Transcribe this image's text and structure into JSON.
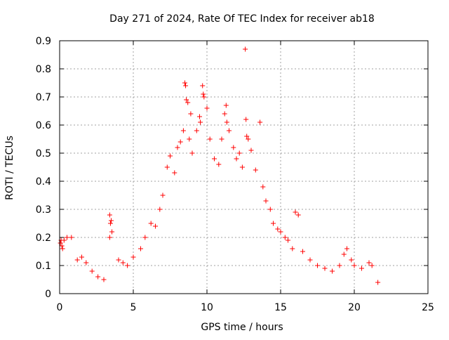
{
  "chart_data": {
    "type": "scatter",
    "title": "Day 271 of 2024, Rate Of TEC Index for receiver ab18",
    "xlabel": "GPS time / hours",
    "ylabel": "ROTI / TECUs",
    "xlim": [
      0,
      25
    ],
    "ylim": [
      0,
      0.9
    ],
    "x_ticks": [
      "0",
      "5",
      "10",
      "15",
      "20",
      "25"
    ],
    "y_ticks": [
      "0",
      "0.1",
      "0.2",
      "0.3",
      "0.4",
      "0.5",
      "0.6",
      "0.7",
      "0.8",
      "0.9"
    ],
    "grid": true,
    "marker": "+",
    "point_color": "#ff0000",
    "series": [
      {
        "points": [
          [
            0.05,
            0.18
          ],
          [
            0.1,
            0.19
          ],
          [
            0.15,
            0.17
          ],
          [
            0.2,
            0.16
          ],
          [
            0.3,
            0.19
          ],
          [
            0.5,
            0.2
          ],
          [
            0.8,
            0.2
          ],
          [
            1.2,
            0.12
          ],
          [
            1.5,
            0.13
          ],
          [
            1.8,
            0.11
          ],
          [
            2.2,
            0.08
          ],
          [
            2.6,
            0.06
          ],
          [
            3.0,
            0.05
          ],
          [
            3.4,
            0.28
          ],
          [
            3.5,
            0.26
          ],
          [
            3.45,
            0.25
          ],
          [
            3.55,
            0.22
          ],
          [
            3.4,
            0.2
          ],
          [
            4.0,
            0.12
          ],
          [
            4.3,
            0.11
          ],
          [
            4.6,
            0.1
          ],
          [
            5.0,
            0.13
          ],
          [
            5.5,
            0.16
          ],
          [
            5.8,
            0.2
          ],
          [
            6.2,
            0.25
          ],
          [
            6.5,
            0.24
          ],
          [
            6.8,
            0.3
          ],
          [
            7.0,
            0.35
          ],
          [
            7.3,
            0.45
          ],
          [
            7.5,
            0.49
          ],
          [
            7.8,
            0.43
          ],
          [
            8.0,
            0.52
          ],
          [
            8.2,
            0.54
          ],
          [
            8.4,
            0.58
          ],
          [
            8.5,
            0.75
          ],
          [
            8.55,
            0.74
          ],
          [
            8.6,
            0.69
          ],
          [
            8.7,
            0.68
          ],
          [
            8.8,
            0.55
          ],
          [
            8.9,
            0.64
          ],
          [
            9.0,
            0.5
          ],
          [
            9.3,
            0.58
          ],
          [
            9.5,
            0.63
          ],
          [
            9.55,
            0.61
          ],
          [
            9.7,
            0.74
          ],
          [
            9.75,
            0.71
          ],
          [
            9.8,
            0.7
          ],
          [
            10.0,
            0.66
          ],
          [
            10.2,
            0.55
          ],
          [
            10.5,
            0.48
          ],
          [
            10.8,
            0.46
          ],
          [
            11.0,
            0.55
          ],
          [
            11.2,
            0.64
          ],
          [
            11.3,
            0.67
          ],
          [
            11.35,
            0.61
          ],
          [
            11.5,
            0.58
          ],
          [
            11.8,
            0.52
          ],
          [
            12.0,
            0.48
          ],
          [
            12.2,
            0.5
          ],
          [
            12.4,
            0.45
          ],
          [
            12.6,
            0.87
          ],
          [
            12.65,
            0.62
          ],
          [
            12.7,
            0.56
          ],
          [
            12.8,
            0.55
          ],
          [
            13.0,
            0.51
          ],
          [
            13.3,
            0.44
          ],
          [
            13.6,
            0.61
          ],
          [
            13.8,
            0.38
          ],
          [
            14.0,
            0.33
          ],
          [
            14.3,
            0.3
          ],
          [
            14.5,
            0.25
          ],
          [
            14.8,
            0.23
          ],
          [
            15.0,
            0.22
          ],
          [
            15.3,
            0.2
          ],
          [
            15.5,
            0.19
          ],
          [
            15.8,
            0.16
          ],
          [
            16.0,
            0.29
          ],
          [
            16.2,
            0.28
          ],
          [
            16.5,
            0.15
          ],
          [
            17.0,
            0.12
          ],
          [
            17.5,
            0.1
          ],
          [
            18.0,
            0.09
          ],
          [
            18.5,
            0.08
          ],
          [
            19.0,
            0.1
          ],
          [
            19.3,
            0.14
          ],
          [
            19.5,
            0.16
          ],
          [
            19.8,
            0.12
          ],
          [
            20.0,
            0.1
          ],
          [
            20.5,
            0.09
          ],
          [
            21.0,
            0.11
          ],
          [
            21.2,
            0.1
          ],
          [
            21.6,
            0.04
          ]
        ]
      }
    ]
  }
}
